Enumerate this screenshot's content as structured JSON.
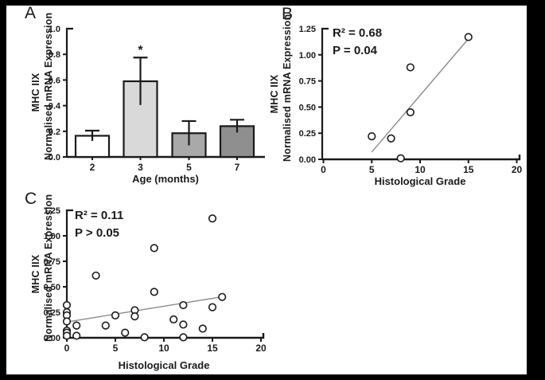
{
  "style": {
    "axis_color": "#1a1a1a",
    "regression_line_color": "#8a8a8a",
    "marker": "open-circle",
    "frame_color": "#000000",
    "canvas_color": "#ffffff"
  },
  "chart_data": [
    {
      "panel": "A",
      "type": "bar",
      "xlabel": "Age (months)",
      "ylabel": [
        "MHC IIX",
        "Normalised  mRNA Expression"
      ],
      "categories": [
        "2",
        "3",
        "5",
        "7"
      ],
      "values": [
        0.165,
        0.59,
        0.185,
        0.24
      ],
      "error_up": [
        0.04,
        0.185,
        0.095,
        0.05
      ],
      "bar_fills": [
        "#ffffff",
        "#d9d9d9",
        "#a9a9a9",
        "#8f8f8f"
      ],
      "significance_marker": {
        "category_index": 1,
        "symbol": "*"
      },
      "ylim": [
        0,
        1.0
      ],
      "ytick_labels": [
        "0.0",
        "0.2",
        "0.4",
        "0.6",
        "0.8",
        "1.0"
      ],
      "grid": false,
      "legend": null
    },
    {
      "panel": "B",
      "type": "scatter",
      "xlabel": "Histological Grade",
      "ylabel": [
        "MHC IIX",
        "Normalised  mRNA Expression"
      ],
      "annotation": [
        "R² = 0.68",
        "P = 0.04"
      ],
      "points": [
        [
          5,
          0.22
        ],
        [
          7,
          0.2
        ],
        [
          8,
          0.01
        ],
        [
          9,
          0.88
        ],
        [
          9,
          0.45
        ],
        [
          15,
          1.17
        ]
      ],
      "regression_line": [
        [
          5,
          0.07
        ],
        [
          15.15,
          1.17
        ]
      ],
      "xlim": [
        0,
        20
      ],
      "ylim": [
        0,
        1.25
      ],
      "xtick_labels": [
        "0",
        "5",
        "10",
        "15",
        "20"
      ],
      "ytick_labels": [
        "0.00",
        "0.25",
        "0.50",
        "0.75",
        "1.00",
        "1.25"
      ],
      "grid": false,
      "legend": null
    },
    {
      "panel": "C",
      "type": "scatter",
      "xlabel": "Histological Grade",
      "ylabel": [
        "MHC IIX",
        "Normalised  mRNA Expression"
      ],
      "annotation": [
        "R² = 0.11",
        "P > 0.05"
      ],
      "points": [
        [
          0,
          0.32
        ],
        [
          0,
          0.25
        ],
        [
          0,
          0.22
        ],
        [
          0,
          0.16
        ],
        [
          0,
          0.07
        ],
        [
          0,
          0.05
        ],
        [
          0,
          0.02
        ],
        [
          1,
          0.12
        ],
        [
          1,
          0.02
        ],
        [
          3,
          0.61
        ],
        [
          4,
          0.12
        ],
        [
          5,
          0.22
        ],
        [
          6,
          0.05
        ],
        [
          7,
          0.27
        ],
        [
          7,
          0.21
        ],
        [
          8,
          0.005
        ],
        [
          9,
          0.88
        ],
        [
          9,
          0.45
        ],
        [
          11,
          0.18
        ],
        [
          12,
          0.32
        ],
        [
          12,
          0.13
        ],
        [
          12,
          0.005
        ],
        [
          14,
          0.09
        ],
        [
          15,
          1.17
        ],
        [
          15,
          0.3
        ],
        [
          16,
          0.4
        ]
      ],
      "regression_line": [
        [
          0,
          0.155
        ],
        [
          16.2,
          0.405
        ]
      ],
      "xlim": [
        0,
        20
      ],
      "ylim": [
        0,
        1.25
      ],
      "xtick_labels": [
        "0",
        "5",
        "10",
        "15",
        "20"
      ],
      "ytick_labels": [
        "0.00",
        "0.25",
        "0.50",
        "0.75",
        "1.00",
        "1.25"
      ],
      "grid": false,
      "legend": null
    }
  ]
}
